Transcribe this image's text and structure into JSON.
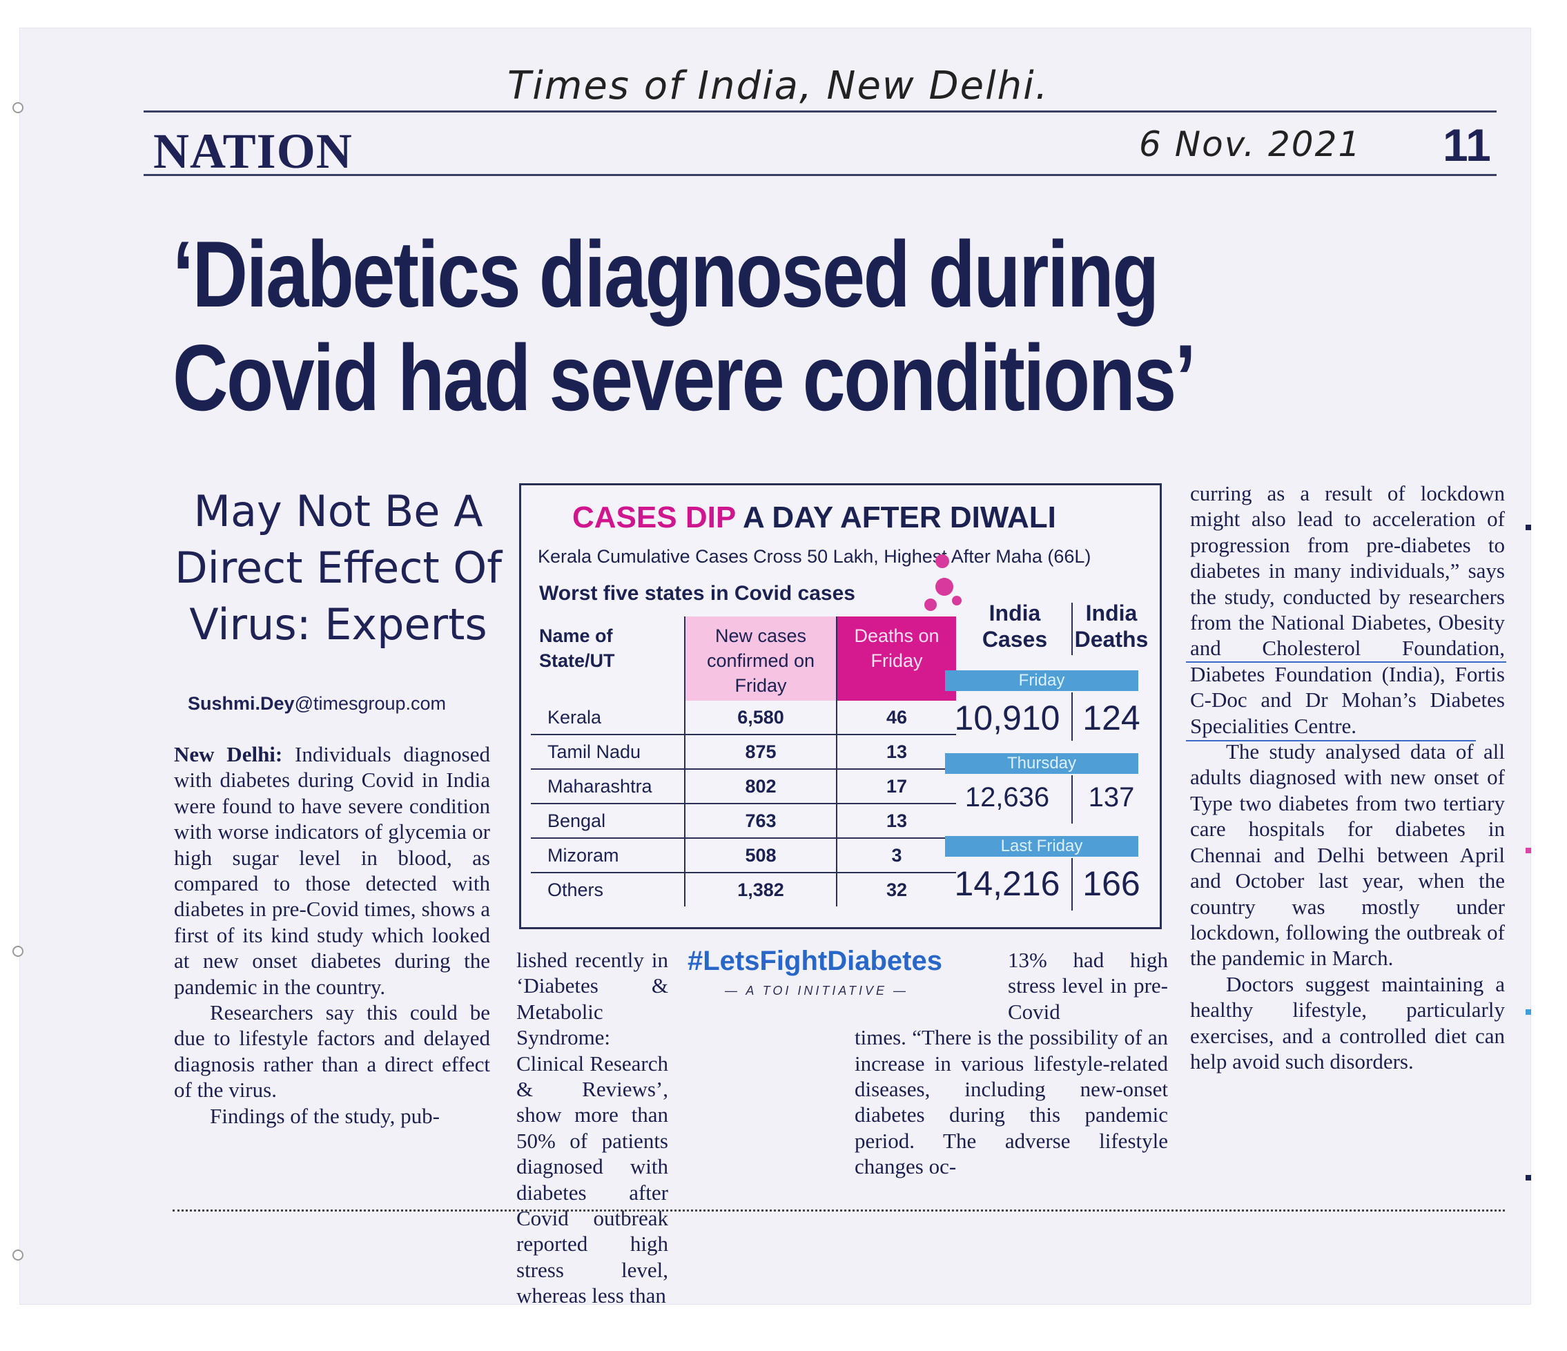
{
  "handwritten": {
    "source": "Times of India, New Delhi.",
    "date": "6 Nov. 2021"
  },
  "page": {
    "section": "NATION",
    "number": "11"
  },
  "article": {
    "headline_line1": "‘Diabetics diagnosed during",
    "headline_line2": "Covid had severe conditions’",
    "deck_line1": "May Not Be A",
    "deck_line2": "Direct Effect Of",
    "deck_line3": "Virus: Experts",
    "byline_name": "Sushmi.Dey",
    "byline_domain": "@timesgroup.com",
    "col1": {
      "dateline": "New Delhi:",
      "p1": "Individuals diagnosed with diabetes during Covid in India were found to have severe condition with worse indicators of glycemia or high sugar level in blood, as compared to those detected with diabetes in pre-Covid times, shows a first of its kind study which looked at new onset diabetes during the pandemic in the country.",
      "p2": "Researchers say this could be due to lifestyle factors and delayed diagnosis rather than a direct effect of the virus.",
      "p3": "Findings of the study, pub-"
    },
    "col2": {
      "p1": "lished recently in ‘Diabetes & Metabolic Syndrome: Clinical Research & Reviews’, show more than 50% of patients diagnosed with diabetes after Covid outbreak reported high stress level, whereas less than"
    },
    "col3": {
      "p1a": "13% had high stress level in pre-Covid",
      "p1b": "times. “There is the possibility of an increase in various lifestyle-related diseases, including new-onset diabetes during this pandemic period. The adverse lifestyle changes oc-"
    },
    "col4": {
      "p1": "curring as a result of lockdown might also lead to acceleration of progression from pre-diabetes to diabetes in many individuals,” says the study, conducted by researchers from the National Diabetes, Obesity and Cholesterol Foundation, Diabetes Foundation (India), Fortis C-Doc and Dr Mohan’s Diabetes Specialities Centre.",
      "p2": "The study analysed data of all adults diagnosed with new onset of Type two diabetes from two tertiary care hospitals for diabetes in Chennai and Delhi between April and October last year, when the country was mostly under lockdown, following the outbreak of the pandemic in March.",
      "p3": "Doctors suggest maintaining a healthy lifestyle, particularly exercises, and a controlled diet can help avoid such disorders."
    }
  },
  "infographic": {
    "title_pink": "CASES DIP",
    "title_dark": "A DAY AFTER DIWALI",
    "subtitle": "Kerala Cumulative Cases Cross 50 Lakh, Highest After Maha (66L)",
    "table_title": "Worst five states in Covid cases",
    "headers": {
      "state": "Name of State/UT",
      "new_cases": "New cases confirmed on Friday",
      "deaths": "Deaths on Friday"
    },
    "rows": [
      {
        "state": "Kerala",
        "cases": "6,580",
        "deaths": "46"
      },
      {
        "state": "Tamil Nadu",
        "cases": "875",
        "deaths": "13"
      },
      {
        "state": "Maharashtra",
        "cases": "802",
        "deaths": "17"
      },
      {
        "state": "Bengal",
        "cases": "763",
        "deaths": "13"
      },
      {
        "state": "Mizoram",
        "cases": "508",
        "deaths": "3"
      },
      {
        "state": "Others",
        "cases": "1,382",
        "deaths": "32"
      }
    ],
    "india": {
      "cases_label": "India Cases",
      "deaths_label": "India Deaths",
      "periods": [
        {
          "label": "Friday",
          "cases": "10,910",
          "deaths": "124"
        },
        {
          "label": "Thursday",
          "cases": "12,636",
          "deaths": "137"
        },
        {
          "label": "Last Friday",
          "cases": "14,216",
          "deaths": "166"
        }
      ]
    },
    "colors": {
      "pink": "#d0168f",
      "light_pink": "#f6c3e3",
      "blue": "#4f9fd6",
      "navy": "#1b2150"
    }
  },
  "campaign": {
    "hashtag": "#LetsFightDiabetes",
    "tagline": "— A TOI INITIATIVE —"
  }
}
